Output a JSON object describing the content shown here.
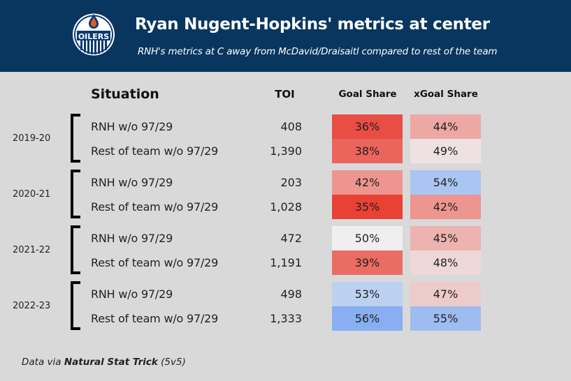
{
  "header": {
    "title": "Ryan Nugent-Hopkins' metrics at center",
    "subtitle": "RNH's metrics at C away from McDavid/Draisaitl compared to rest of the team",
    "logo_text": "OILERS",
    "logo_icon": "edmonton-oilers-logo"
  },
  "columns": {
    "situation": "Situation",
    "toi": "TOI",
    "goal_share": "Goal Share",
    "xgoal_share": "xGoal Share"
  },
  "colors": {
    "header_bg": "#08365f",
    "page_bg": "#d9d9d9",
    "low_red": "#e8423a",
    "neutral": "#efefef",
    "high_blue": "#86aef2"
  },
  "seasons": [
    {
      "season": "2019-20",
      "rows": [
        {
          "situation": "RNH w/o 97/29",
          "toi": "408",
          "goal_share": "36%",
          "goal_color": "#ea4d43",
          "xgoal_share": "44%",
          "xgoal_color": "#eda8a3"
        },
        {
          "situation": "Rest of team w/o 97/29",
          "toi": "1,390",
          "goal_share": "38%",
          "goal_color": "#ec655c",
          "xgoal_share": "49%",
          "xgoal_color": "#ede2e1"
        }
      ]
    },
    {
      "season": "2020-21",
      "rows": [
        {
          "situation": "RNH w/o 97/29",
          "toi": "203",
          "goal_share": "42%",
          "goal_color": "#ed958e",
          "xgoal_share": "54%",
          "xgoal_color": "#aac5f2"
        },
        {
          "situation": "Rest of team w/o 97/29",
          "toi": "1,028",
          "goal_share": "35%",
          "goal_color": "#e94234",
          "xgoal_share": "42%",
          "xgoal_color": "#ed958e"
        }
      ]
    },
    {
      "season": "2021-22",
      "rows": [
        {
          "situation": "RNH w/o 97/29",
          "toi": "472",
          "goal_share": "50%",
          "goal_color": "#efefef",
          "xgoal_share": "45%",
          "xgoal_color": "#edb3af"
        },
        {
          "situation": "Rest of team w/o 97/29",
          "toi": "1,191",
          "goal_share": "39%",
          "goal_color": "#eb6c63",
          "xgoal_share": "48%",
          "xgoal_color": "#edd8d7"
        }
      ]
    },
    {
      "season": "2022-23",
      "rows": [
        {
          "situation": "RNH w/o 97/29",
          "toi": "498",
          "goal_share": "53%",
          "goal_color": "#bcd1f0",
          "xgoal_share": "47%",
          "xgoal_color": "#edcbc9"
        },
        {
          "situation": "Rest of team w/o 97/29",
          "toi": "1,333",
          "goal_share": "56%",
          "goal_color": "#87aff2",
          "xgoal_share": "55%",
          "xgoal_color": "#9dbcf0"
        }
      ]
    }
  ],
  "footer": {
    "prefix": "Data via ",
    "source": "Natural Stat Trick",
    "suffix": " (5v5)"
  }
}
